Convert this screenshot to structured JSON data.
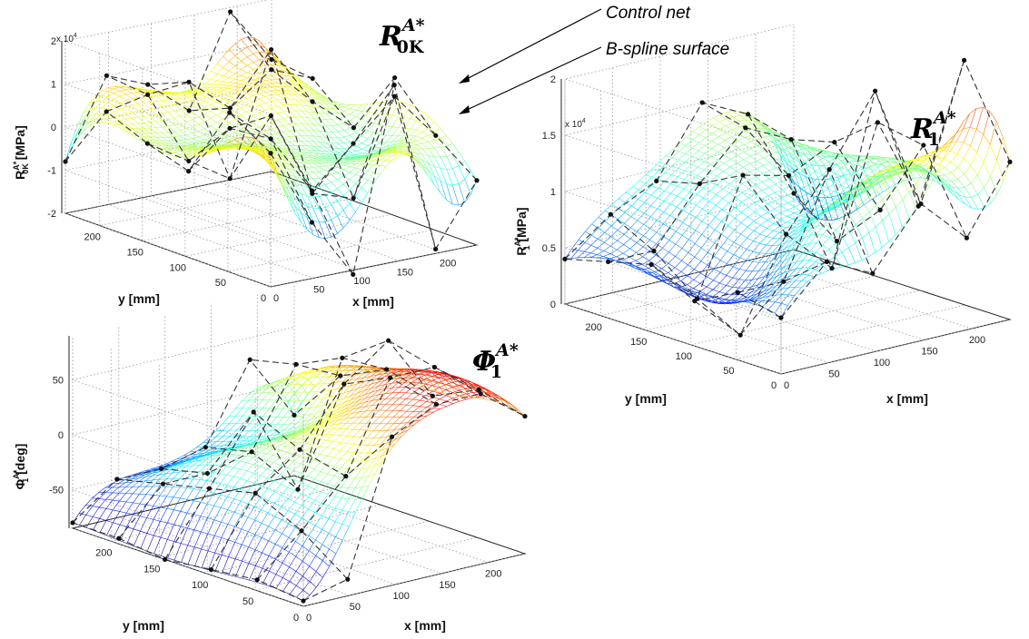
{
  "annotations": {
    "control_net": "Control net",
    "bspline_surface": "B-spline surface"
  },
  "chart_data": [
    {
      "type": "surface",
      "panel": "top-left",
      "title": {
        "main": "R",
        "sup": "A*",
        "sub": "0K"
      },
      "zlabel": {
        "main": "R",
        "sup": "A*",
        "sub": "0K",
        "unit": " [MPa]"
      },
      "xlabel": "x [mm]",
      "ylabel": "y [mm]",
      "z_multiplier": "x 10",
      "z_multiplier_exp": "4",
      "x_ticks": [
        "0",
        "50",
        "100",
        "150",
        "200"
      ],
      "y_ticks": [
        "0",
        "50",
        "100",
        "150",
        "200"
      ],
      "z_ticks": [
        "-2",
        "-1",
        "0",
        "1",
        "2"
      ],
      "xlim": [
        0,
        240
      ],
      "ylim": [
        0,
        240
      ],
      "zlim": [
        -2,
        2
      ],
      "grid": true,
      "colormap": "jet",
      "control_net": [
        [
          1.1,
          1.7,
          0.0,
          0.3,
          0.7,
          -0.8
        ],
        [
          -0.7,
          0.9,
          0.8,
          -0.3,
          0.9,
          1.0
        ],
        [
          -2.1,
          -0.5,
          0.9,
          -0.9,
          1.0,
          0.6
        ],
        [
          2.1,
          0.4,
          -1.1,
          1.9,
          0.2,
          -0.2
        ],
        [
          -1.9,
          1.3,
          -1.4,
          0.5,
          0.9,
          1.9
        ],
        [
          -0.5,
          0.2,
          1.2,
          -0.3,
          0.5,
          0.6
        ]
      ]
    },
    {
      "type": "surface",
      "panel": "right",
      "title": {
        "main": "R",
        "sup": "A*",
        "sub": "1"
      },
      "zlabel": {
        "main": "R",
        "sup": "A*",
        "sub": "1",
        "unit": " [MPa]"
      },
      "xlabel": "x [mm]",
      "ylabel": "y [mm]",
      "z_multiplier": "x 10",
      "z_multiplier_exp": "4",
      "x_ticks": [
        "0",
        "50",
        "100",
        "150",
        "200"
      ],
      "y_ticks": [
        "0",
        "50",
        "100",
        "150",
        "200"
      ],
      "z_ticks": [
        "0",
        "0.5",
        "1",
        "1.5",
        "2"
      ],
      "xlim": [
        0,
        240
      ],
      "ylim": [
        0,
        240
      ],
      "zlim": [
        0,
        2
      ],
      "grid": true,
      "colormap": "jet",
      "control_net": [
        [
          0.5,
          0.6,
          0.4,
          0.6,
          0.5,
          0.4
        ],
        [
          0.9,
          0.6,
          0.0,
          0.2,
          0.5,
          0.7
        ],
        [
          0.7,
          1.5,
          0.8,
          1.2,
          1.0,
          0.9
        ],
        [
          1.2,
          2.1,
          0.4,
          1.1,
          1.4,
          1.5
        ],
        [
          2.4,
          1.0,
          1.6,
          1.3,
          1.2,
          1.3
        ],
        [
          1.4,
          0.6,
          1.3,
          0.6,
          0.2,
          0.5
        ]
      ]
    },
    {
      "type": "surface",
      "panel": "bottom-left",
      "title": {
        "main": "Φ",
        "sup": "A*",
        "sub": "1"
      },
      "zlabel": {
        "main": "Φ",
        "sup": "A*",
        "sub": "1",
        "unit": " [deg]"
      },
      "xlabel": "x [mm]",
      "ylabel": "y [mm]",
      "x_ticks": [
        "0",
        "50",
        "100",
        "150",
        "200"
      ],
      "y_ticks": [
        "0",
        "50",
        "100",
        "150",
        "200"
      ],
      "z_ticks": [
        "-50",
        "0",
        "50"
      ],
      "xlim": [
        0,
        240
      ],
      "ylim": [
        0,
        240
      ],
      "zlim": [
        -85,
        90
      ],
      "grid": true,
      "colormap": "jet",
      "control_net": [
        [
          -80,
          -75,
          -80,
          -85,
          -80,
          -80
        ],
        [
          -70,
          -40,
          -20,
          -30,
          -40,
          -50
        ],
        [
          50,
          0,
          10,
          30,
          -40,
          -50
        ],
        [
          70,
          80,
          60,
          -50,
          -30,
          -40
        ],
        [
          70,
          80,
          90,
          60,
          40,
          30
        ],
        [
          40,
          50,
          30,
          40,
          20,
          -30
        ]
      ]
    }
  ]
}
